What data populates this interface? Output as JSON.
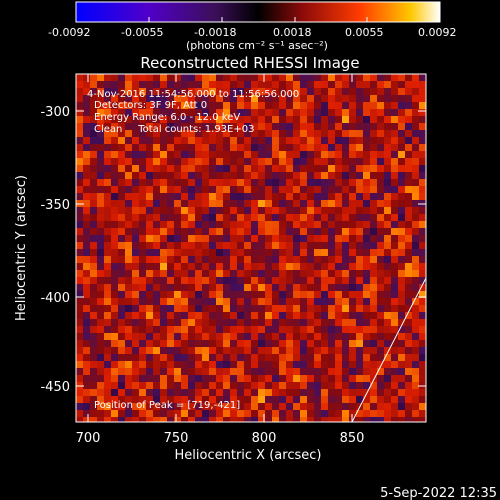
{
  "colorbar": {
    "ticks": [
      "-0.0092",
      "-0.0055",
      "-0.0018",
      "0.0018",
      "0.0055",
      "0.0092"
    ],
    "units_label": "(photons cm⁻² s⁻¹ asec⁻²)"
  },
  "plot": {
    "title": "Reconstructed RHESSI Image",
    "xlabel": "Heliocentric X (arcsec)",
    "ylabel": "Heliocentric Y (arcsec)",
    "xticks": [
      "700",
      "750",
      "800",
      "850"
    ],
    "yticks": [
      "-300",
      "-350",
      "-400",
      "-450"
    ]
  },
  "annotations": {
    "line1": "4-Nov-2016 11:54:56.000 to 11:56:56.000",
    "line2": "Detectors: 3F 9F, Att 0",
    "line3": "Energy Range: 6.0 - 12.0 keV",
    "line4": "Clean     Total counts: 1.93E+03",
    "peak": "Position of Peak = [719,-421]"
  },
  "footer": {
    "timestamp": "5-Sep-2022 12:35"
  }
}
